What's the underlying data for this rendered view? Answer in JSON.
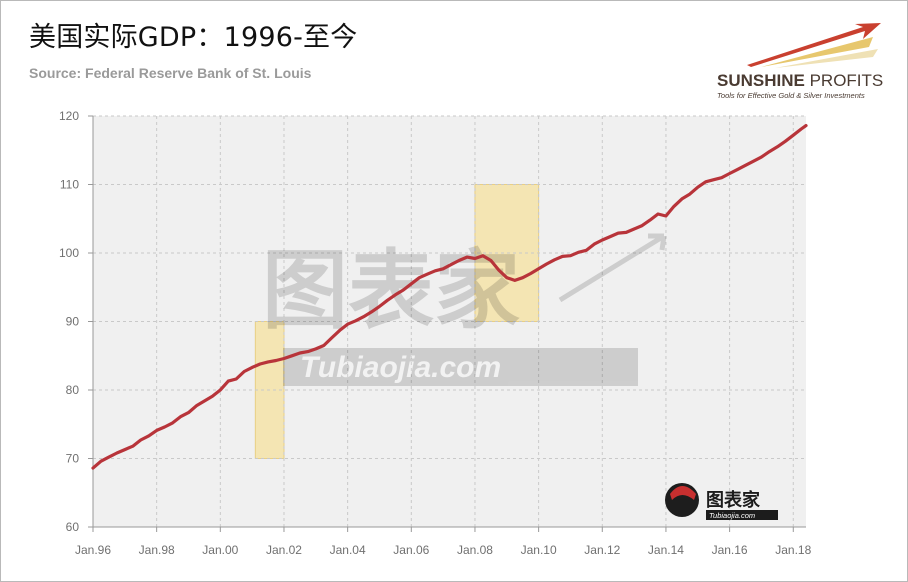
{
  "header": {
    "title": "美国实际GDP：1996-至今",
    "source": "Source: Federal Reserve Bank of St. Louis"
  },
  "brand": {
    "name_bold": "SUNSHINE",
    "name_light": " PROFITS",
    "tagline": "Tools for Effective Gold & Silver Investments"
  },
  "watermark": {
    "large_text": "图表家",
    "url_text": "Tubiaojia.com",
    "badge_text": "图表家",
    "badge_url": "Tubiaojia.com"
  },
  "colors": {
    "line": "#b8343a",
    "recession_fill": "#f5e3a8",
    "plot_bg": "#f0f0f0",
    "grid": "#c9c9c9"
  },
  "chart_data": {
    "type": "line",
    "title": "美国实际GDP：1996-至今",
    "xlabel": "",
    "ylabel": "",
    "xlim": [
      1996.0,
      2018.4
    ],
    "ylim": [
      60,
      120
    ],
    "grid": true,
    "y_ticks": [
      60,
      70,
      80,
      90,
      100,
      110,
      120
    ],
    "x_ticks": [
      {
        "value": 1996,
        "label": "Jan.96"
      },
      {
        "value": 1998,
        "label": "Jan.98"
      },
      {
        "value": 2000,
        "label": "Jan.00"
      },
      {
        "value": 2002,
        "label": "Jan.02"
      },
      {
        "value": 2004,
        "label": "Jan.04"
      },
      {
        "value": 2006,
        "label": "Jan.06"
      },
      {
        "value": 2008,
        "label": "Jan.08"
      },
      {
        "value": 2010,
        "label": "Jan.10"
      },
      {
        "value": 2012,
        "label": "Jan.12"
      },
      {
        "value": 2014,
        "label": "Jan.14"
      },
      {
        "value": 2016,
        "label": "Jan.16"
      },
      {
        "value": 2018,
        "label": "Jan.18"
      }
    ],
    "recession_shading": [
      {
        "x_start": 2001.1,
        "x_end": 2002.0,
        "y_low": 70,
        "y_high": 90
      },
      {
        "x_start": 2008.0,
        "x_end": 2010.0,
        "y_low": 90,
        "y_high": 110
      }
    ],
    "series": [
      {
        "points": [
          [
            1996.0,
            68.6
          ],
          [
            1996.25,
            69.6
          ],
          [
            1996.5,
            70.2
          ],
          [
            1996.75,
            70.8
          ],
          [
            1997.0,
            71.3
          ],
          [
            1997.25,
            71.8
          ],
          [
            1997.5,
            72.7
          ],
          [
            1997.75,
            73.3
          ],
          [
            1998.0,
            74.1
          ],
          [
            1998.25,
            74.6
          ],
          [
            1998.5,
            75.2
          ],
          [
            1998.75,
            76.1
          ],
          [
            1999.0,
            76.7
          ],
          [
            1999.25,
            77.7
          ],
          [
            1999.5,
            78.4
          ],
          [
            1999.75,
            79.1
          ],
          [
            2000.0,
            80.0
          ],
          [
            2000.25,
            81.3
          ],
          [
            2000.5,
            81.6
          ],
          [
            2000.75,
            82.7
          ],
          [
            2001.0,
            83.3
          ],
          [
            2001.25,
            83.8
          ],
          [
            2001.5,
            84.1
          ],
          [
            2001.75,
            84.3
          ],
          [
            2002.0,
            84.6
          ],
          [
            2002.25,
            85.0
          ],
          [
            2002.5,
            85.4
          ],
          [
            2002.75,
            85.6
          ],
          [
            2003.0,
            86.0
          ],
          [
            2003.25,
            86.5
          ],
          [
            2003.5,
            87.6
          ],
          [
            2003.75,
            88.7
          ],
          [
            2004.0,
            89.6
          ],
          [
            2004.25,
            90.1
          ],
          [
            2004.5,
            90.7
          ],
          [
            2004.75,
            91.4
          ],
          [
            2005.0,
            92.2
          ],
          [
            2005.25,
            93.1
          ],
          [
            2005.5,
            93.9
          ],
          [
            2005.75,
            94.6
          ],
          [
            2006.0,
            95.5
          ],
          [
            2006.25,
            96.4
          ],
          [
            2006.5,
            96.9
          ],
          [
            2006.75,
            97.4
          ],
          [
            2007.0,
            97.7
          ],
          [
            2007.25,
            98.3
          ],
          [
            2007.5,
            98.9
          ],
          [
            2007.75,
            99.4
          ],
          [
            2008.0,
            99.2
          ],
          [
            2008.25,
            99.6
          ],
          [
            2008.5,
            98.9
          ],
          [
            2008.75,
            97.5
          ],
          [
            2009.0,
            96.4
          ],
          [
            2009.25,
            96.0
          ],
          [
            2009.5,
            96.4
          ],
          [
            2009.75,
            97.0
          ],
          [
            2010.0,
            97.7
          ],
          [
            2010.25,
            98.4
          ],
          [
            2010.5,
            99.0
          ],
          [
            2010.75,
            99.5
          ],
          [
            2011.0,
            99.6
          ],
          [
            2011.25,
            100.1
          ],
          [
            2011.5,
            100.4
          ],
          [
            2011.75,
            101.3
          ],
          [
            2012.0,
            101.9
          ],
          [
            2012.25,
            102.4
          ],
          [
            2012.5,
            102.9
          ],
          [
            2012.75,
            103.0
          ],
          [
            2013.0,
            103.5
          ],
          [
            2013.25,
            104.0
          ],
          [
            2013.5,
            104.8
          ],
          [
            2013.75,
            105.7
          ],
          [
            2014.0,
            105.4
          ],
          [
            2014.25,
            106.8
          ],
          [
            2014.5,
            107.9
          ],
          [
            2014.75,
            108.6
          ],
          [
            2015.0,
            109.6
          ],
          [
            2015.25,
            110.4
          ],
          [
            2015.5,
            110.7
          ],
          [
            2015.75,
            111.0
          ],
          [
            2016.0,
            111.6
          ],
          [
            2016.25,
            112.2
          ],
          [
            2016.5,
            112.8
          ],
          [
            2016.75,
            113.4
          ],
          [
            2017.0,
            114.0
          ],
          [
            2017.25,
            114.8
          ],
          [
            2017.5,
            115.5
          ],
          [
            2017.75,
            116.3
          ],
          [
            2018.0,
            117.2
          ],
          [
            2018.25,
            118.1
          ],
          [
            2018.4,
            118.6
          ]
        ]
      }
    ]
  }
}
